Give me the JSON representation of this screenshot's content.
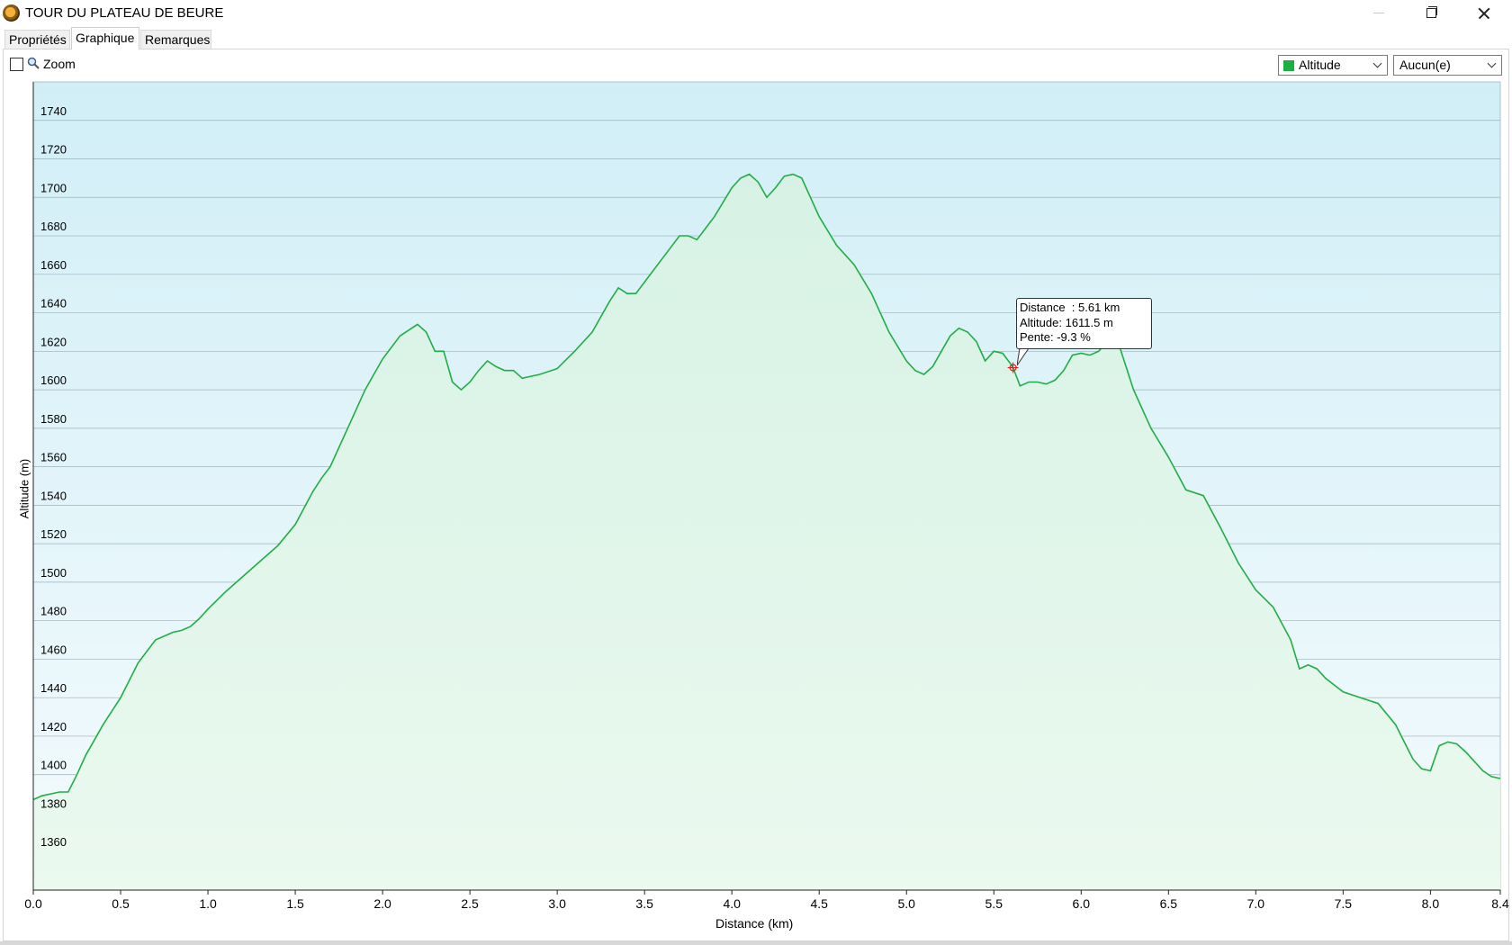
{
  "window": {
    "title": "TOUR DU PLATEAU DE BEURE"
  },
  "tabs": [
    {
      "label": "Propriétés",
      "active": false
    },
    {
      "label": "Graphique",
      "active": true
    },
    {
      "label": "Remarques",
      "active": false
    }
  ],
  "toolbar": {
    "zoom_label": "Zoom",
    "zoom_checked": false
  },
  "combos": {
    "series": {
      "value": "Altitude",
      "swatch_color": "#1fae44"
    },
    "secondary": {
      "value": "Aucun(e)"
    }
  },
  "tooltip": {
    "line1": "Distance  : 5.61 km",
    "line2": "Altitude: 1611.5 m",
    "line3": "Pente: -9.3 %"
  },
  "chart_data": {
    "type": "area",
    "xlabel": "Distance    (km)",
    "ylabel": "Altitude (m)",
    "xlim": [
      0,
      8.4
    ],
    "ylim": [
      1340,
      1760
    ],
    "x_ticks": [
      "0.0",
      "0.5",
      "1.0",
      "1.5",
      "2.0",
      "2.5",
      "3.0",
      "3.5",
      "4.0",
      "4.5",
      "5.0",
      "5.5",
      "6.0",
      "6.5",
      "7.0",
      "7.5",
      "8.0",
      "8.4"
    ],
    "y_ticks": [
      1360,
      1380,
      1400,
      1420,
      1440,
      1460,
      1480,
      1500,
      1520,
      1540,
      1560,
      1580,
      1600,
      1620,
      1640,
      1660,
      1680,
      1700,
      1720,
      1740
    ],
    "grid": true,
    "line_color": "#1fae44",
    "highlight": {
      "x": 5.61,
      "y": 1611.5,
      "color": "#e02020"
    },
    "series": [
      {
        "x": [
          0.0,
          0.05,
          0.1,
          0.15,
          0.2,
          0.25,
          0.3,
          0.35,
          0.4,
          0.5,
          0.6,
          0.7,
          0.8,
          0.85,
          0.9,
          0.95,
          1.0,
          1.1,
          1.2,
          1.3,
          1.4,
          1.5,
          1.6,
          1.65,
          1.7,
          1.75,
          1.8,
          1.9,
          2.0,
          2.1,
          2.2,
          2.25,
          2.3,
          2.35,
          2.4,
          2.45,
          2.5,
          2.55,
          2.6,
          2.65,
          2.7,
          2.75,
          2.8,
          2.9,
          3.0,
          3.1,
          3.2,
          3.3,
          3.35,
          3.4,
          3.45,
          3.5,
          3.55,
          3.6,
          3.7,
          3.75,
          3.8,
          3.9,
          4.0,
          4.05,
          4.1,
          4.15,
          4.2,
          4.25,
          4.3,
          4.35,
          4.4,
          4.45,
          4.5,
          4.6,
          4.7,
          4.8,
          4.9,
          5.0,
          5.05,
          5.1,
          5.15,
          5.2,
          5.25,
          5.3,
          5.35,
          5.4,
          5.45,
          5.5,
          5.55,
          5.6,
          5.61,
          5.65,
          5.7,
          5.75,
          5.8,
          5.85,
          5.9,
          5.95,
          6.0,
          6.05,
          6.1,
          6.15,
          6.2,
          6.3,
          6.4,
          6.5,
          6.6,
          6.7,
          6.8,
          6.9,
          7.0,
          7.1,
          7.2,
          7.25,
          7.3,
          7.35,
          7.4,
          7.5,
          7.6,
          7.7,
          7.8,
          7.9,
          7.95,
          8.0,
          8.05,
          8.1,
          8.15,
          8.2,
          8.25,
          8.3,
          8.35,
          8.4
        ],
        "values": [
          1387,
          1389,
          1390,
          1391,
          1391,
          1400,
          1410,
          1418,
          1426,
          1440,
          1458,
          1470,
          1474,
          1475,
          1477,
          1481,
          1486,
          1495,
          1503,
          1511,
          1519,
          1530,
          1547,
          1554,
          1560,
          1570,
          1580,
          1600,
          1616,
          1628,
          1634,
          1630,
          1620,
          1620,
          1604,
          1600,
          1604,
          1610,
          1615,
          1612,
          1610,
          1610,
          1606,
          1608,
          1611,
          1620,
          1630,
          1646,
          1653,
          1650,
          1650,
          1656,
          1662,
          1668,
          1680,
          1680,
          1678,
          1690,
          1705,
          1710,
          1712,
          1708,
          1700,
          1705,
          1711,
          1712,
          1710,
          1700,
          1690,
          1675,
          1665,
          1650,
          1630,
          1615,
          1610,
          1608,
          1612,
          1620,
          1628,
          1632,
          1630,
          1625,
          1615,
          1620,
          1619,
          1613,
          1611.5,
          1602,
          1604,
          1604,
          1603,
          1605,
          1610,
          1618,
          1619,
          1618,
          1620,
          1625,
          1628,
          1600,
          1580,
          1565,
          1548,
          1545,
          1528,
          1510,
          1496,
          1487,
          1470,
          1455,
          1457,
          1455,
          1450,
          1443,
          1440,
          1437,
          1426,
          1408,
          1403,
          1402,
          1415,
          1417,
          1416,
          1412,
          1407,
          1402,
          1399,
          1398
        ]
      }
    ]
  }
}
